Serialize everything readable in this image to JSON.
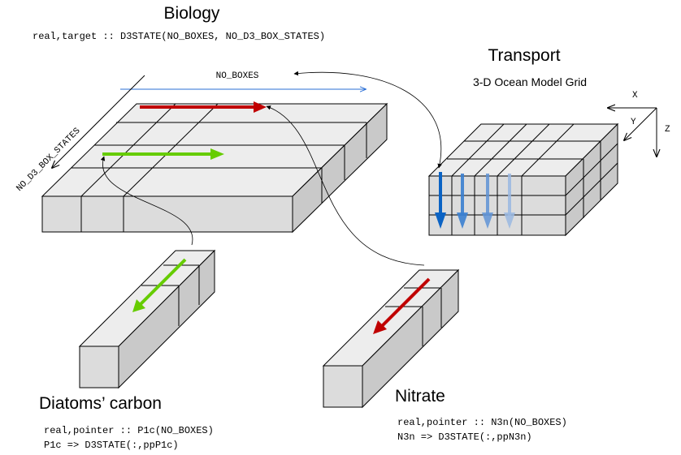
{
  "biology": {
    "title": "Biology",
    "code": "real,target :: D3STATE(NO_BOXES, NO_D3_BOX_STATES)",
    "axis_boxes": "NO_BOXES",
    "axis_states": "NO_D3_BOX_STATES"
  },
  "transport": {
    "title": "Transport",
    "subtitle": "3-D Ocean Model Grid",
    "axis_x": "X",
    "axis_y": "Y",
    "axis_z": "Z"
  },
  "diatoms": {
    "title": "Diatoms’ carbon",
    "code_line1": "real,pointer :: P1c(NO_BOXES)",
    "code_line2": "P1c => D3STATE(:,ppP1c)"
  },
  "nitrate": {
    "title": "Nitrate",
    "code_line1": "real,pointer :: N3n(NO_BOXES)",
    "code_line2": "N3n => D3STATE(:,ppN3n)"
  },
  "colors": {
    "red_arrow": "#c00000",
    "green_arrow": "#66cc00",
    "blue_arrow": "#0b63c4",
    "blue_axis": "#2a6fd6"
  },
  "icons": [
    "biology-slab",
    "transport-grid-block",
    "diatoms-bar",
    "nitrate-bar",
    "axis-triad"
  ]
}
